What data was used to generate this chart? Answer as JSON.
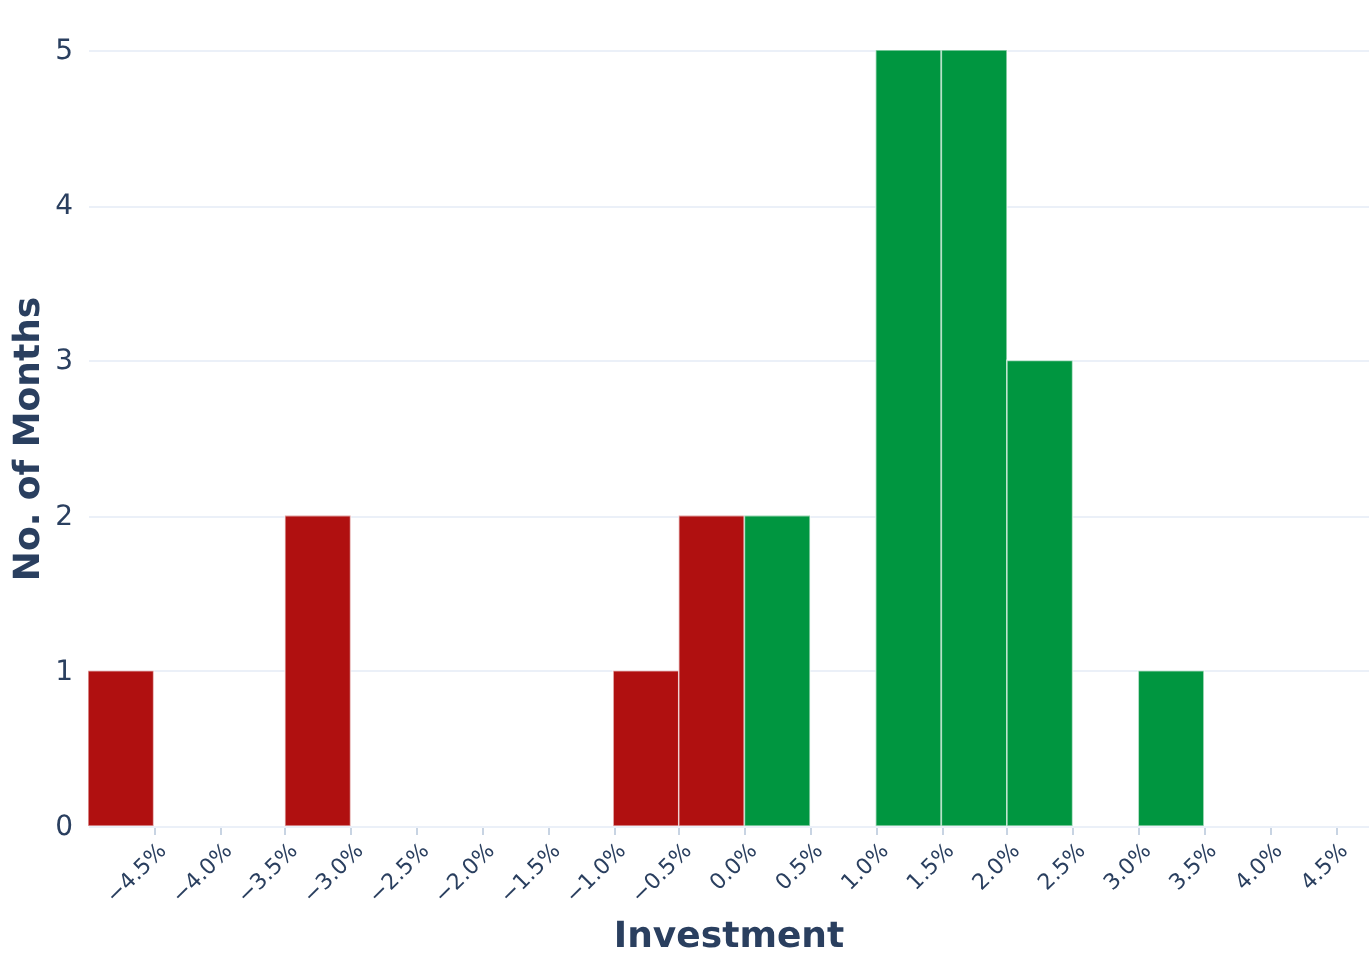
{
  "chart_data": {
    "type": "histogram",
    "xlabel": "Investment",
    "ylabel": "No. of Months",
    "bins": [
      -5.0,
      -4.5,
      -4.0,
      -3.5,
      -3.0,
      -2.5,
      -2.0,
      -1.5,
      -1.0,
      -0.5,
      0.0,
      0.5,
      1.0,
      1.5,
      2.0,
      2.5,
      3.0,
      3.5
    ],
    "values": [
      1,
      0,
      0,
      2,
      0,
      0,
      0,
      0,
      1,
      2,
      2,
      0,
      5,
      5,
      3,
      0,
      1
    ],
    "colors": [
      "#b01010",
      "#b01010",
      "#b01010",
      "#b01010",
      "#b01010",
      "#b01010",
      "#b01010",
      "#b01010",
      "#b01010",
      "#b01010",
      "#009640",
      "#009640",
      "#009640",
      "#009640",
      "#009640",
      "#009640",
      "#009640"
    ],
    "xlim": [
      -5.0,
      4.75
    ],
    "ylim": [
      0,
      5
    ],
    "xticks": [
      {
        "value": -4.5,
        "label": "−4.5%"
      },
      {
        "value": -4.0,
        "label": "−4.0%"
      },
      {
        "value": -3.5,
        "label": "−3.5%"
      },
      {
        "value": -3.0,
        "label": "−3.0%"
      },
      {
        "value": -2.5,
        "label": "−2.5%"
      },
      {
        "value": -2.0,
        "label": "−2.0%"
      },
      {
        "value": -1.5,
        "label": "−1.5%"
      },
      {
        "value": -1.0,
        "label": "−1.0%"
      },
      {
        "value": -0.5,
        "label": "−0.5%"
      },
      {
        "value": 0.0,
        "label": "0.0%"
      },
      {
        "value": 0.5,
        "label": "0.5%"
      },
      {
        "value": 1.0,
        "label": "1.0%"
      },
      {
        "value": 1.5,
        "label": "1.5%"
      },
      {
        "value": 2.0,
        "label": "2.0%"
      },
      {
        "value": 2.5,
        "label": "2.5%"
      },
      {
        "value": 3.0,
        "label": "3.0%"
      },
      {
        "value": 3.5,
        "label": "3.5%"
      },
      {
        "value": 4.0,
        "label": "4.0%"
      },
      {
        "value": 4.5,
        "label": "4.5%"
      }
    ],
    "yticks": [
      0,
      1,
      2,
      3,
      4,
      5
    ],
    "grid": "y",
    "legend": false
  }
}
